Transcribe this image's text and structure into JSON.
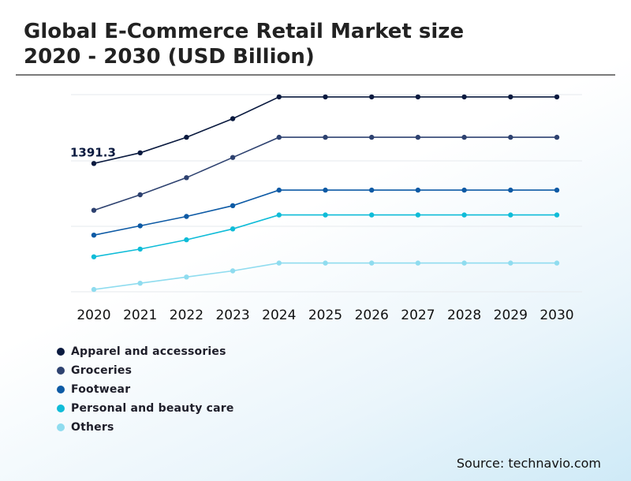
{
  "header": {
    "title_line1": "Global E-Commerce Retail Market size",
    "title_line2": "2020 - 2030 (USD Billion)"
  },
  "footer": {
    "source": "Source: technavio.com"
  },
  "chart_data": {
    "type": "line",
    "title": "Global E-Commerce Retail Market size 2020 - 2030 (USD Billion)",
    "xlabel": "",
    "ylabel": "",
    "grid": true,
    "legend_position": "bottom-left",
    "x": [
      "2020",
      "2021",
      "2022",
      "2023",
      "2024",
      "2025",
      "2026",
      "2027",
      "2028",
      "2029",
      "2030"
    ],
    "annotations": [
      {
        "series": "Apparel and accessories",
        "x": "2020",
        "text": "1391.3"
      }
    ],
    "series": [
      {
        "name": "Apparel and accessories",
        "color": "#0a1a3f",
        "values": [
          1391.3,
          1460,
          1560,
          1680,
          1820,
          1820,
          1820,
          1820,
          1820,
          1820,
          1820
        ]
      },
      {
        "name": "Groceries",
        "color": "#2e4270",
        "values": [
          1090,
          1190,
          1300,
          1430,
          1560,
          1560,
          1560,
          1560,
          1560,
          1560,
          1560
        ]
      },
      {
        "name": "Footwear",
        "color": "#0d5aa5",
        "values": [
          930,
          990,
          1050,
          1120,
          1220,
          1220,
          1220,
          1220,
          1220,
          1220,
          1220
        ]
      },
      {
        "name": "Personal and beauty care",
        "color": "#0fbcd8",
        "values": [
          790,
          840,
          900,
          970,
          1060,
          1060,
          1060,
          1060,
          1060,
          1060,
          1060
        ]
      },
      {
        "name": "Others",
        "color": "#8fdcef",
        "values": [
          580,
          620,
          660,
          700,
          750,
          750,
          750,
          750,
          750,
          750,
          750
        ]
      }
    ]
  }
}
